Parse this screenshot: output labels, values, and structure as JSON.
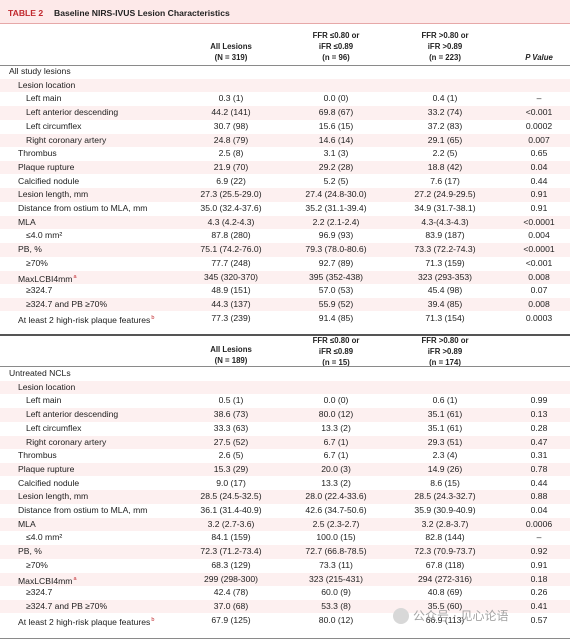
{
  "table": {
    "label": "TABLE 2",
    "title": "Baseline NIRS-IVUS Lesion Characteristics"
  },
  "header1": {
    "col1": [
      "All Lesions",
      "(N = 319)"
    ],
    "col2": [
      "FFR ≤0.80 or",
      "iFR ≤0.89",
      "(n = 96)"
    ],
    "col3": [
      "FFR >0.80 or",
      "iFR >0.89",
      "(n = 223)"
    ],
    "col4": [
      "P Value"
    ]
  },
  "header2": {
    "col1": [
      "All Lesions",
      "(N = 189)"
    ],
    "col2": [
      "FFR ≤0.80 or",
      "iFR ≤0.89",
      "(n = 15)"
    ],
    "col3": [
      "FFR >0.80 or",
      "iFR >0.89",
      "(n = 174)"
    ]
  },
  "section1": {
    "title": "All study lesions",
    "rows": [
      {
        "label": "Lesion location",
        "indent": 1,
        "v": [
          "",
          "",
          "",
          ""
        ]
      },
      {
        "label": "Left main",
        "indent": 2,
        "v": [
          "0.3 (1)",
          "0.0 (0)",
          "0.4 (1)",
          "–"
        ]
      },
      {
        "label": "Left anterior descending",
        "indent": 2,
        "v": [
          "44.2 (141)",
          "69.8 (67)",
          "33.2 (74)",
          "<0.001"
        ]
      },
      {
        "label": "Left circumflex",
        "indent": 2,
        "v": [
          "30.7 (98)",
          "15.6 (15)",
          "37.2 (83)",
          "0.0002"
        ]
      },
      {
        "label": "Right coronary artery",
        "indent": 2,
        "v": [
          "24.8 (79)",
          "14.6 (14)",
          "29.1 (65)",
          "0.007"
        ]
      },
      {
        "label": "Thrombus",
        "indent": 1,
        "v": [
          "2.5 (8)",
          "3.1 (3)",
          "2.2 (5)",
          "0.65"
        ]
      },
      {
        "label": "Plaque rupture",
        "indent": 1,
        "v": [
          "21.9 (70)",
          "29.2 (28)",
          "18.8 (42)",
          "0.04"
        ]
      },
      {
        "label": "Calcified nodule",
        "indent": 1,
        "v": [
          "6.9 (22)",
          "5.2 (5)",
          "7.6 (17)",
          "0.44"
        ]
      },
      {
        "label": "Lesion length, mm",
        "indent": 1,
        "v": [
          "27.3 (25.5-29.0)",
          "27.4 (24.8-30.0)",
          "27.2 (24.9-29.5)",
          "0.91"
        ]
      },
      {
        "label": "Distance from ostium to MLA, mm",
        "indent": 1,
        "v": [
          "35.0 (32.4-37.6)",
          "35.2 (31.1-39.4)",
          "34.9 (31.7-38.1)",
          "0.91"
        ]
      },
      {
        "label": "MLA",
        "indent": 1,
        "v": [
          "4.3 (4.2-4.3)",
          "2.2 (2.1-2.4)",
          "4.3-(4.3-4.3)",
          "<0.0001"
        ]
      },
      {
        "label": "≤4.0 mm²",
        "indent": 2,
        "v": [
          "87.8 (280)",
          "96.9 (93)",
          "83.9 (187)",
          "0.004"
        ]
      },
      {
        "label": "PB, %",
        "indent": 1,
        "v": [
          "75.1 (74.2-76.0)",
          "79.3 (78.0-80.6)",
          "73.3 (72.2-74.3)",
          "<0.0001"
        ]
      },
      {
        "label": "≥70%",
        "indent": 2,
        "v": [
          "77.7 (248)",
          "92.7 (89)",
          "71.3 (159)",
          "<0.001"
        ]
      },
      {
        "label": "MaxLCBI4mm",
        "sup": "a",
        "indent": 1,
        "v": [
          "345 (320-370)",
          "395 (352-438)",
          "323 (293-353)",
          "0.008"
        ]
      },
      {
        "label": "≥324.7",
        "indent": 2,
        "v": [
          "48.9 (151)",
          "57.0 (53)",
          "45.4 (98)",
          "0.07"
        ]
      },
      {
        "label": "≥324.7 and PB ≥70%",
        "indent": 2,
        "v": [
          "44.3 (137)",
          "55.9 (52)",
          "39.4 (85)",
          "0.008"
        ]
      },
      {
        "label": "At least 2 high-risk plaque features",
        "sup": "b",
        "indent": 1,
        "v": [
          "77.3 (239)",
          "91.4 (85)",
          "71.3 (154)",
          "0.0003"
        ]
      }
    ]
  },
  "section2": {
    "title": "Untreated NCLs",
    "rows": [
      {
        "label": "Lesion location",
        "indent": 1,
        "v": [
          "",
          "",
          "",
          ""
        ]
      },
      {
        "label": "Left main",
        "indent": 2,
        "v": [
          "0.5 (1)",
          "0.0 (0)",
          "0.6 (1)",
          "0.99"
        ]
      },
      {
        "label": "Left anterior descending",
        "indent": 2,
        "v": [
          "38.6 (73)",
          "80.0 (12)",
          "35.1 (61)",
          "0.13"
        ]
      },
      {
        "label": "Left circumflex",
        "indent": 2,
        "v": [
          "33.3 (63)",
          "13.3 (2)",
          "35.1 (61)",
          "0.28"
        ]
      },
      {
        "label": "Right coronary artery",
        "indent": 2,
        "v": [
          "27.5 (52)",
          "6.7 (1)",
          "29.3 (51)",
          "0.47"
        ]
      },
      {
        "label": "Thrombus",
        "indent": 1,
        "v": [
          "2.6 (5)",
          "6.7 (1)",
          "2.3 (4)",
          "0.31"
        ]
      },
      {
        "label": "Plaque rupture",
        "indent": 1,
        "v": [
          "15.3 (29)",
          "20.0 (3)",
          "14.9 (26)",
          "0.78"
        ]
      },
      {
        "label": "Calcified nodule",
        "indent": 1,
        "v": [
          "9.0 (17)",
          "13.3 (2)",
          "8.6 (15)",
          "0.44"
        ]
      },
      {
        "label": "Lesion length, mm",
        "indent": 1,
        "v": [
          "28.5 (24.5-32.5)",
          "28.0 (22.4-33.6)",
          "28.5 (24.3-32.7)",
          "0.88"
        ]
      },
      {
        "label": "Distance from ostium to MLA, mm",
        "indent": 1,
        "v": [
          "36.1 (31.4-40.9)",
          "42.6 (34.7-50.6)",
          "35.9 (30.9-40.9)",
          "0.04"
        ]
      },
      {
        "label": "MLA",
        "indent": 1,
        "v": [
          "3.2 (2.7-3.6)",
          "2.5 (2.3-2.7)",
          "3.2 (2.8-3.7)",
          "0.0006"
        ]
      },
      {
        "label": "≤4.0 mm²",
        "indent": 2,
        "v": [
          "84.1 (159)",
          "100.0 (15)",
          "82.8 (144)",
          "–"
        ]
      },
      {
        "label": "PB, %",
        "indent": 1,
        "v": [
          "72.3 (71.2-73.4)",
          "72.7 (66.8-78.5)",
          "72.3 (70.9-73.7)",
          "0.92"
        ]
      },
      {
        "label": "≥70%",
        "indent": 2,
        "v": [
          "68.3 (129)",
          "73.3 (11)",
          "67.8 (118)",
          "0.91"
        ]
      },
      {
        "label": "MaxLCBI4mm",
        "sup": "a",
        "indent": 1,
        "v": [
          "299 (298-300)",
          "323 (215-431)",
          "294 (272-316)",
          "0.18"
        ]
      },
      {
        "label": "≥324.7",
        "indent": 2,
        "v": [
          "42.4 (78)",
          "60.0 (9)",
          "40.8 (69)",
          "0.26"
        ]
      },
      {
        "label": "≥324.7 and PB ≥70%",
        "indent": 2,
        "v": [
          "37.0 (68)",
          "53.3 (8)",
          "35.5 (60)",
          "0.41"
        ]
      },
      {
        "label": "At least 2 high-risk plaque features",
        "sup": "b",
        "indent": 1,
        "v": [
          "67.9 (125)",
          "80.0 (12)",
          "66.9 (113)",
          "0.57"
        ]
      }
    ]
  },
  "watermark": {
    "text": "公众号 · 见心论语"
  }
}
